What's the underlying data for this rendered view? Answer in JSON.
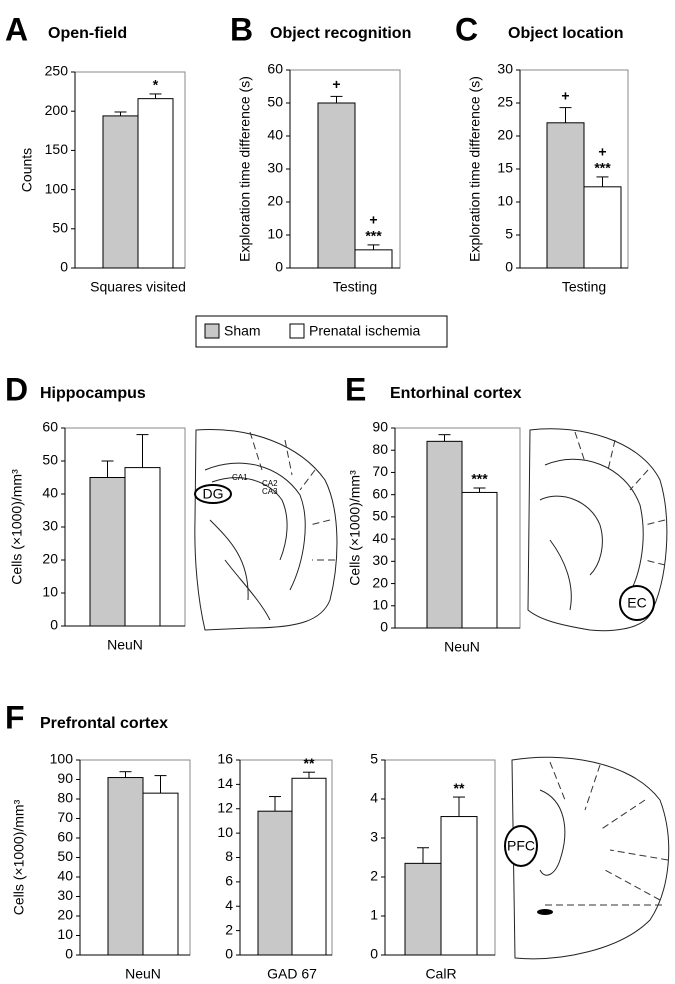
{
  "panels": [
    {
      "letter": "A",
      "title": "Open-field"
    },
    {
      "letter": "B",
      "title": "Object recognition"
    },
    {
      "letter": "C",
      "title": "Object location"
    },
    {
      "letter": "D",
      "title": "Hippocampus"
    },
    {
      "letter": "E",
      "title": "Entorhinal cortex"
    },
    {
      "letter": "F",
      "title": "Prefrontal cortex"
    }
  ],
  "diagrams": {
    "hippocampus": [
      "CA1",
      "CA2",
      "CA3",
      "DG"
    ],
    "entorhinal": [
      "EC"
    ],
    "prefrontal": [
      "PFC"
    ]
  },
  "chart_data": [
    {
      "type": "bar",
      "y_label": "Counts",
      "categories": [
        "Squares visited"
      ],
      "series": [
        {
          "name": "Sham",
          "color": "#c8c8c8",
          "values": [
            194
          ],
          "errors": [
            5
          ],
          "annotations": []
        },
        {
          "name": "Prenatal ischemia",
          "color": "#ffffff",
          "values": [
            216
          ],
          "errors": [
            6
          ],
          "annotations": [
            "*"
          ]
        }
      ],
      "ylim": [
        0,
        250
      ],
      "yticks": [
        0,
        50,
        100,
        150,
        200,
        250
      ]
    },
    {
      "type": "bar",
      "y_label": "Exploration time difference (s)",
      "categories": [
        "Testing"
      ],
      "series": [
        {
          "color": "#c8c8c8",
          "values": [
            50
          ],
          "errors": [
            2
          ],
          "annotations": [
            "+"
          ]
        },
        {
          "color": "#ffffff",
          "values": [
            5.5
          ],
          "errors": [
            1.5
          ],
          "annotations": [
            "+",
            "***"
          ]
        }
      ],
      "ylim": [
        0,
        60
      ],
      "yticks": [
        0,
        10,
        20,
        30,
        40,
        50,
        60
      ]
    },
    {
      "type": "bar",
      "y_label": "Exploration time difference (s)",
      "categories": [
        "Testing"
      ],
      "series": [
        {
          "color": "#c8c8c8",
          "values": [
            22
          ],
          "errors": [
            2.3
          ],
          "annotations": [
            "+"
          ]
        },
        {
          "color": "#ffffff",
          "values": [
            12.3
          ],
          "errors": [
            1.5
          ],
          "annotations": [
            "+",
            "***"
          ]
        }
      ],
      "ylim": [
        0,
        30
      ],
      "yticks": [
        0,
        5,
        10,
        15,
        20,
        25,
        30
      ]
    },
    {
      "type": "bar",
      "y_label": "Cells (×1000)/mm³",
      "categories": [
        "NeuN"
      ],
      "series": [
        {
          "color": "#c8c8c8",
          "values": [
            45
          ],
          "errors": [
            5
          ],
          "annotations": []
        },
        {
          "color": "#ffffff",
          "values": [
            48
          ],
          "errors": [
            10
          ],
          "annotations": []
        }
      ],
      "ylim": [
        0,
        60
      ],
      "yticks": [
        0,
        10,
        20,
        30,
        40,
        50,
        60
      ]
    },
    {
      "type": "bar",
      "y_label": "Cells (×1000)/mm³",
      "categories": [
        "NeuN"
      ],
      "series": [
        {
          "color": "#c8c8c8",
          "values": [
            84
          ],
          "errors": [
            3
          ],
          "annotations": []
        },
        {
          "color": "#ffffff",
          "values": [
            61
          ],
          "errors": [
            2
          ],
          "annotations": [
            "***"
          ]
        }
      ],
      "ylim": [
        0,
        90
      ],
      "yticks": [
        0,
        10,
        20,
        30,
        40,
        50,
        60,
        70,
        80,
        90
      ]
    },
    {
      "type": "bar",
      "y_label": "Cells (×1000)/mm³",
      "categories": [
        "NeuN"
      ],
      "series": [
        {
          "color": "#c8c8c8",
          "values": [
            91
          ],
          "errors": [
            3
          ],
          "annotations": []
        },
        {
          "color": "#ffffff",
          "values": [
            83
          ],
          "errors": [
            9
          ],
          "annotations": []
        }
      ],
      "ylim": [
        0,
        100
      ],
      "yticks": [
        0,
        10,
        20,
        30,
        40,
        50,
        60,
        70,
        80,
        90,
        100
      ]
    },
    {
      "type": "bar",
      "categories": [
        "GAD 67"
      ],
      "series": [
        {
          "color": "#c8c8c8",
          "values": [
            11.8
          ],
          "errors": [
            1.2
          ],
          "annotations": []
        },
        {
          "color": "#ffffff",
          "values": [
            14.5
          ],
          "errors": [
            0.5
          ],
          "annotations": [
            "**"
          ]
        }
      ],
      "ylim": [
        0,
        16
      ],
      "yticks": [
        0,
        2,
        4,
        6,
        8,
        10,
        12,
        14,
        16
      ]
    },
    {
      "type": "bar",
      "categories": [
        "CalR"
      ],
      "series": [
        {
          "color": "#c8c8c8",
          "values": [
            2.35
          ],
          "errors": [
            0.4
          ],
          "annotations": []
        },
        {
          "color": "#ffffff",
          "values": [
            3.55
          ],
          "errors": [
            0.5
          ],
          "annotations": [
            "**"
          ]
        }
      ],
      "ylim": [
        0,
        5
      ],
      "yticks": [
        0,
        1,
        2,
        3,
        4,
        5
      ]
    }
  ]
}
